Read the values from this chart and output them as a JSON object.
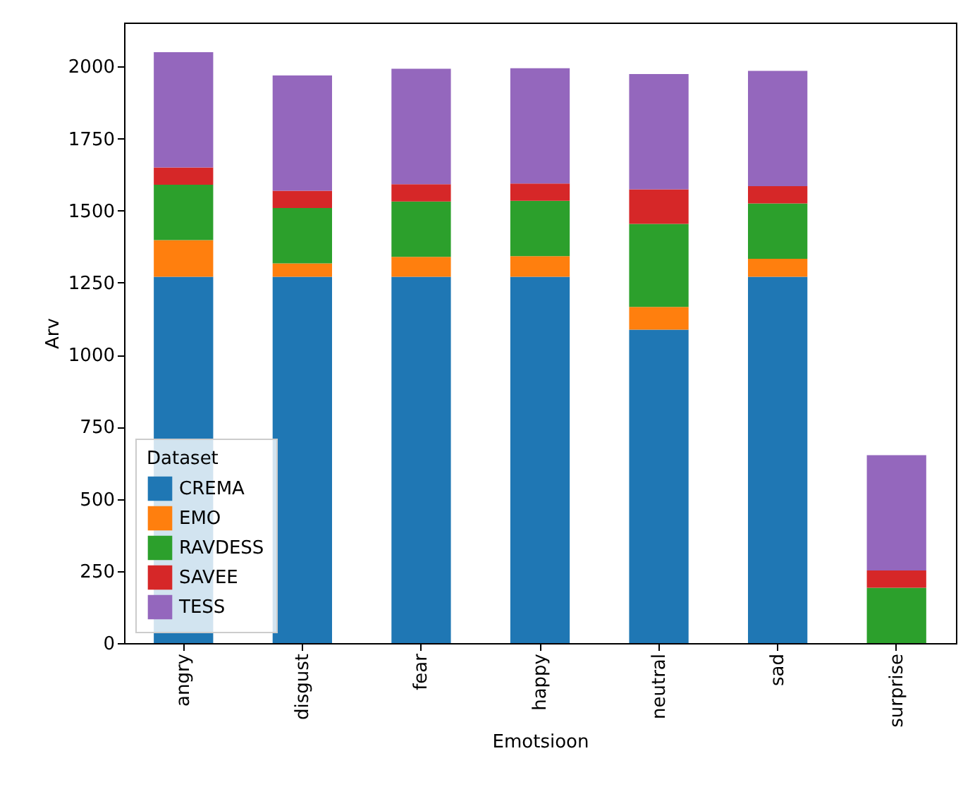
{
  "chart_data": {
    "type": "bar",
    "stacked": true,
    "xlabel": "Emotsioon",
    "ylabel": "Arv",
    "legend_title": "Dataset",
    "legend": "bottom left",
    "grid": false,
    "categories": [
      "angry",
      "disgust",
      "fear",
      "happy",
      "neutral",
      "sad",
      "surprise"
    ],
    "series": [
      {
        "name": "CREMA",
        "color": "#1f77b4",
        "values": [
          1271,
          1271,
          1271,
          1271,
          1087,
          1271,
          0
        ]
      },
      {
        "name": "EMO",
        "color": "#ff7f0e",
        "values": [
          127,
          46,
          69,
          71,
          79,
          62,
          0
        ]
      },
      {
        "name": "RAVDESS",
        "color": "#2ca02c",
        "values": [
          192,
          192,
          192,
          192,
          288,
          192,
          192
        ]
      },
      {
        "name": "SAVEE",
        "color": "#d62728",
        "values": [
          60,
          60,
          60,
          60,
          120,
          60,
          60
        ]
      },
      {
        "name": "TESS",
        "color": "#9467bd",
        "values": [
          400,
          400,
          400,
          400,
          400,
          400,
          400
        ]
      }
    ],
    "ylim": [
      0,
      2152.5
    ],
    "yticks": [
      0,
      250,
      500,
      750,
      1000,
      1250,
      1500,
      1750,
      2000
    ]
  }
}
